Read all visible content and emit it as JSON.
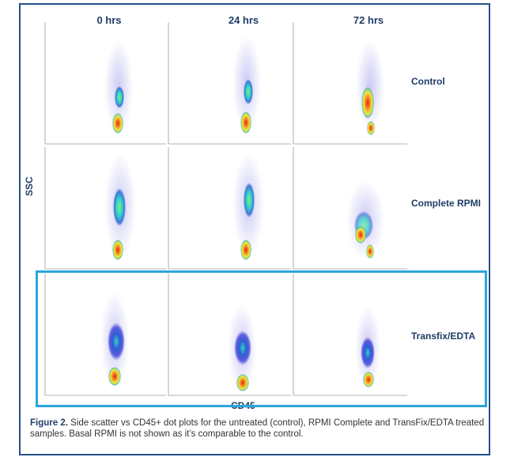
{
  "columns": [
    "0 hrs",
    "24 hrs",
    "72 hrs"
  ],
  "rows": [
    "Control",
    "Complete  RPMI",
    "Transfix/EDTA"
  ],
  "y_axis_label": "SSC",
  "x_axis_label": "CD45",
  "caption": {
    "label": "Figure 2.",
    "text": " Side scatter vs CD45+ dot plots for the untreated (control), RPMI Complete and TransFix/EDTA treated samples. Basal RPMI is not shown as it’s comparable to the control."
  },
  "highlighted_row": "Transfix/EDTA",
  "colors": {
    "frame": "#24508a",
    "highlight": "#2aa7d9",
    "density_low": "#3b3bd6",
    "density_mid": "#2fd6c8",
    "density_high": "#e81e1e"
  }
}
